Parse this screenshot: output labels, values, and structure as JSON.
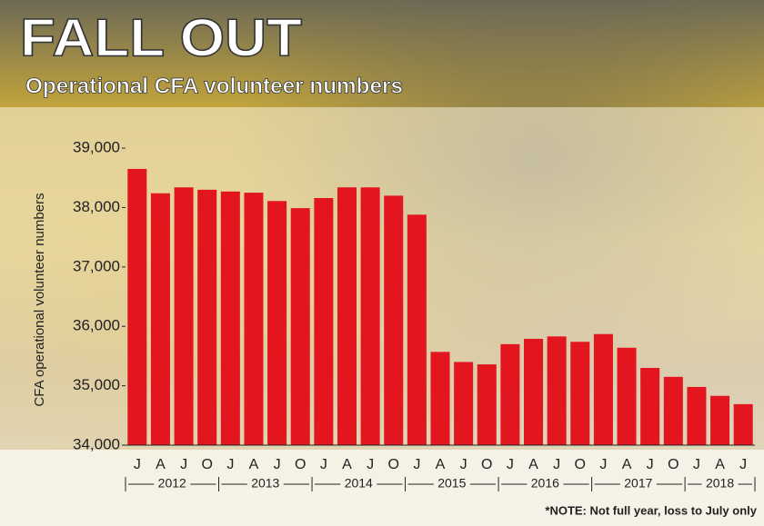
{
  "chart_data": {
    "type": "bar",
    "title": "FALL OUT",
    "subtitle": "Operational CFA volunteer numbers",
    "y_label": "CFA operational volunteer numbers",
    "note": "*NOTE: Not full year, loss to July only",
    "categories": [
      "J",
      "A",
      "J",
      "O",
      "J",
      "A",
      "J",
      "O",
      "J",
      "A",
      "J",
      "O",
      "J",
      "A",
      "J",
      "O",
      "J",
      "A",
      "J",
      "O",
      "J",
      "A",
      "J",
      "O",
      "J",
      "A",
      "J"
    ],
    "years": [
      "2012",
      "2013",
      "2014",
      "2015",
      "2016",
      "2017",
      "2018"
    ],
    "values": [
      38650,
      38240,
      38340,
      38300,
      38270,
      38250,
      38110,
      37990,
      38160,
      38340,
      38340,
      38200,
      37880,
      35570,
      35400,
      35360,
      35700,
      35790,
      35830,
      35740,
      35870,
      35640,
      35300,
      35150,
      34980,
      34830,
      34690
    ],
    "color": "#e3161f",
    "ylim": [
      34000,
      39200
    ],
    "yticks": [
      {
        "value": 34000,
        "label": "34,000"
      },
      {
        "value": 35000,
        "label": "35,000"
      },
      {
        "value": 36000,
        "label": "36,000"
      },
      {
        "value": 37000,
        "label": "37,000"
      },
      {
        "value": 38000,
        "label": "38,000"
      },
      {
        "value": 39000,
        "label": "39,000"
      }
    ],
    "grid": false
  }
}
